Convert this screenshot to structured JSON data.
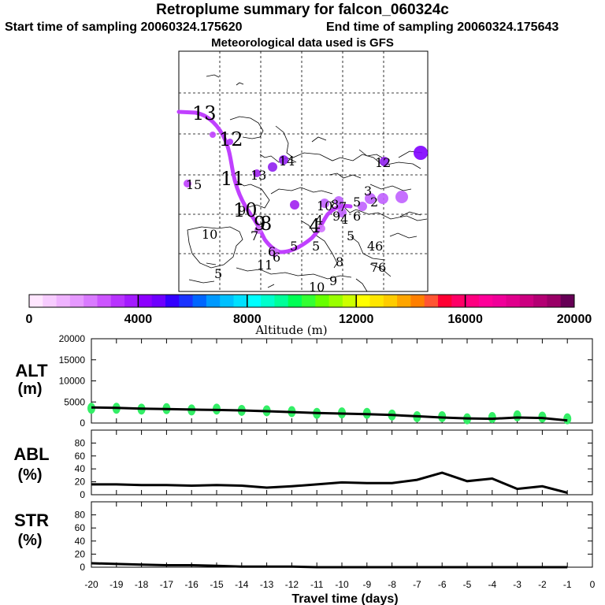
{
  "header": {
    "title": "Retroplume summary for falcon_060324c",
    "start_time": "Start time of sampling 20060324.175620",
    "end_time": "End time of sampling 20060324.175643",
    "met_data": "Meteorological data used is GFS"
  },
  "map": {
    "trajectory_color": "#c040ff",
    "labels": [
      {
        "text": "13",
        "size": "big"
      },
      {
        "text": "12",
        "size": "big"
      },
      {
        "text": "11",
        "size": "big"
      },
      {
        "text": "10",
        "size": "big"
      },
      {
        "text": "9",
        "size": "big"
      },
      {
        "text": "8",
        "size": "big"
      },
      {
        "text": "7",
        "size": "small"
      },
      {
        "text": "6",
        "size": "small"
      },
      {
        "text": "5",
        "size": "small"
      },
      {
        "text": "4",
        "size": "big"
      },
      {
        "text": "5",
        "size": "small"
      },
      {
        "text": "15",
        "size": "small"
      },
      {
        "text": "10",
        "size": "small"
      },
      {
        "text": "13",
        "size": "small"
      },
      {
        "text": "14",
        "size": "small"
      },
      {
        "text": "12",
        "size": "small"
      },
      {
        "text": "9",
        "size": "small"
      },
      {
        "text": "10",
        "size": "small"
      },
      {
        "text": "8",
        "size": "small"
      },
      {
        "text": "9",
        "size": "small"
      },
      {
        "text": "3",
        "size": "small"
      },
      {
        "text": "2",
        "size": "small"
      },
      {
        "text": "5",
        "size": "small"
      },
      {
        "text": "6",
        "size": "small"
      },
      {
        "text": "4",
        "size": "small"
      },
      {
        "text": "46",
        "size": "small"
      },
      {
        "text": "76",
        "size": "small"
      },
      {
        "text": "11",
        "size": "small"
      },
      {
        "text": "6",
        "size": "small"
      },
      {
        "text": "5",
        "size": "small"
      },
      {
        "text": "8",
        "size": "small"
      },
      {
        "text": "10",
        "size": "small"
      },
      {
        "text": "9",
        "size": "small"
      },
      {
        "text": "4",
        "size": "small"
      },
      {
        "text": "7",
        "size": "small"
      },
      {
        "text": "5",
        "size": "small"
      }
    ]
  },
  "colorbar": {
    "colors": [
      "#ffe6ff",
      "#f7ccff",
      "#efb3ff",
      "#e699ff",
      "#d97aff",
      "#cc55ff",
      "#b833ff",
      "#a31aff",
      "#8c00ff",
      "#6e00ff",
      "#3300ff",
      "#1a33ff",
      "#0066ff",
      "#0099ff",
      "#00c0ff",
      "#00e0ff",
      "#00ffff",
      "#00ffcc",
      "#00ff99",
      "#00ff55",
      "#33ff33",
      "#66ff00",
      "#99ff00",
      "#ccff00",
      "#ffff00",
      "#ffe600",
      "#ffcc00",
      "#ffa500",
      "#ff7f00",
      "#ff5533",
      "#ff0033",
      "#ff0066",
      "#ff0080",
      "#ff0099",
      "#f00099",
      "#e0008c",
      "#cc0080",
      "#b30073",
      "#990066",
      "#660055"
    ],
    "tick_labels": [
      "0",
      "4000",
      "8000",
      "12000",
      "16000",
      "20000"
    ],
    "tick_values": [
      0,
      4000,
      8000,
      12000,
      16000,
      20000
    ],
    "max": 20000,
    "label": "Altitude (m)"
  },
  "chart_data": [
    {
      "type": "scatter",
      "name": "ALT",
      "ylabel_line1": "ALT",
      "ylabel_line2": "(m)",
      "ylim": [
        0,
        20000
      ],
      "yticks": [
        0,
        5000,
        10000,
        15000,
        20000
      ],
      "ytick_labels": [
        "0",
        "5000",
        "10000",
        "15000",
        "20000"
      ],
      "x": [
        -20,
        -19,
        -18,
        -17,
        -16,
        -15,
        -14,
        -13,
        -12,
        -11,
        -10,
        -9,
        -8,
        -7,
        -6,
        -5,
        -4,
        -3,
        -2,
        -1
      ],
      "line_values": [
        3700,
        3600,
        3400,
        3300,
        3200,
        3100,
        3000,
        2800,
        2600,
        2400,
        2250,
        2100,
        1900,
        1600,
        1300,
        1100,
        1000,
        1300,
        1200,
        600
      ],
      "scatter_values": [
        3500,
        3500,
        3300,
        3400,
        3100,
        3300,
        3000,
        2900,
        2700,
        2300,
        2400,
        2300,
        1900,
        1500,
        1500,
        1000,
        1300,
        1700,
        1400,
        1000
      ],
      "scatter_color": "#33ee66"
    },
    {
      "type": "line",
      "name": "ABL",
      "ylabel_line1": "ABL",
      "ylabel_line2": "(%)",
      "ylim": [
        0,
        100
      ],
      "yticks": [
        0,
        20,
        40,
        60,
        80
      ],
      "ytick_labels": [
        "0",
        "20",
        "40",
        "60",
        "80"
      ],
      "x": [
        -20,
        -19,
        -18,
        -17,
        -16,
        -15,
        -14,
        -13,
        -12,
        -11,
        -10,
        -9,
        -8,
        -7,
        -6,
        -5,
        -4,
        -3,
        -2,
        -1
      ],
      "values": [
        16,
        16,
        15,
        15,
        14,
        15,
        14,
        11,
        13,
        16,
        19,
        18,
        18,
        23,
        34,
        21,
        25,
        9,
        13,
        3
      ]
    },
    {
      "type": "line",
      "name": "STR",
      "ylabel_line1": "STR",
      "ylabel_line2": "(%)",
      "ylim": [
        0,
        100
      ],
      "yticks": [
        0,
        20,
        40,
        60,
        80
      ],
      "ytick_labels": [
        "0",
        "20",
        "40",
        "60",
        "80"
      ],
      "x": [
        -20,
        -19,
        -18,
        -17,
        -16,
        -15,
        -14,
        -13,
        -12,
        -11,
        -10,
        -9,
        -8,
        -7,
        -6,
        -5,
        -4,
        -3,
        -2,
        -1
      ],
      "values": [
        6,
        5,
        4,
        3,
        3,
        2,
        1,
        1,
        1,
        0,
        0,
        0,
        0,
        0,
        0,
        0,
        0,
        0,
        0,
        0
      ]
    }
  ],
  "xaxis": {
    "tick_labels": [
      "-20",
      "-19",
      "-18",
      "-17",
      "-16",
      "-15",
      "-14",
      "-13",
      "-12",
      "-11",
      "-10",
      "-9",
      "-8",
      "-7",
      "-6",
      "-5",
      "-4",
      "-3",
      "-2",
      "-1",
      "0"
    ],
    "label": "Travel time (days)"
  }
}
